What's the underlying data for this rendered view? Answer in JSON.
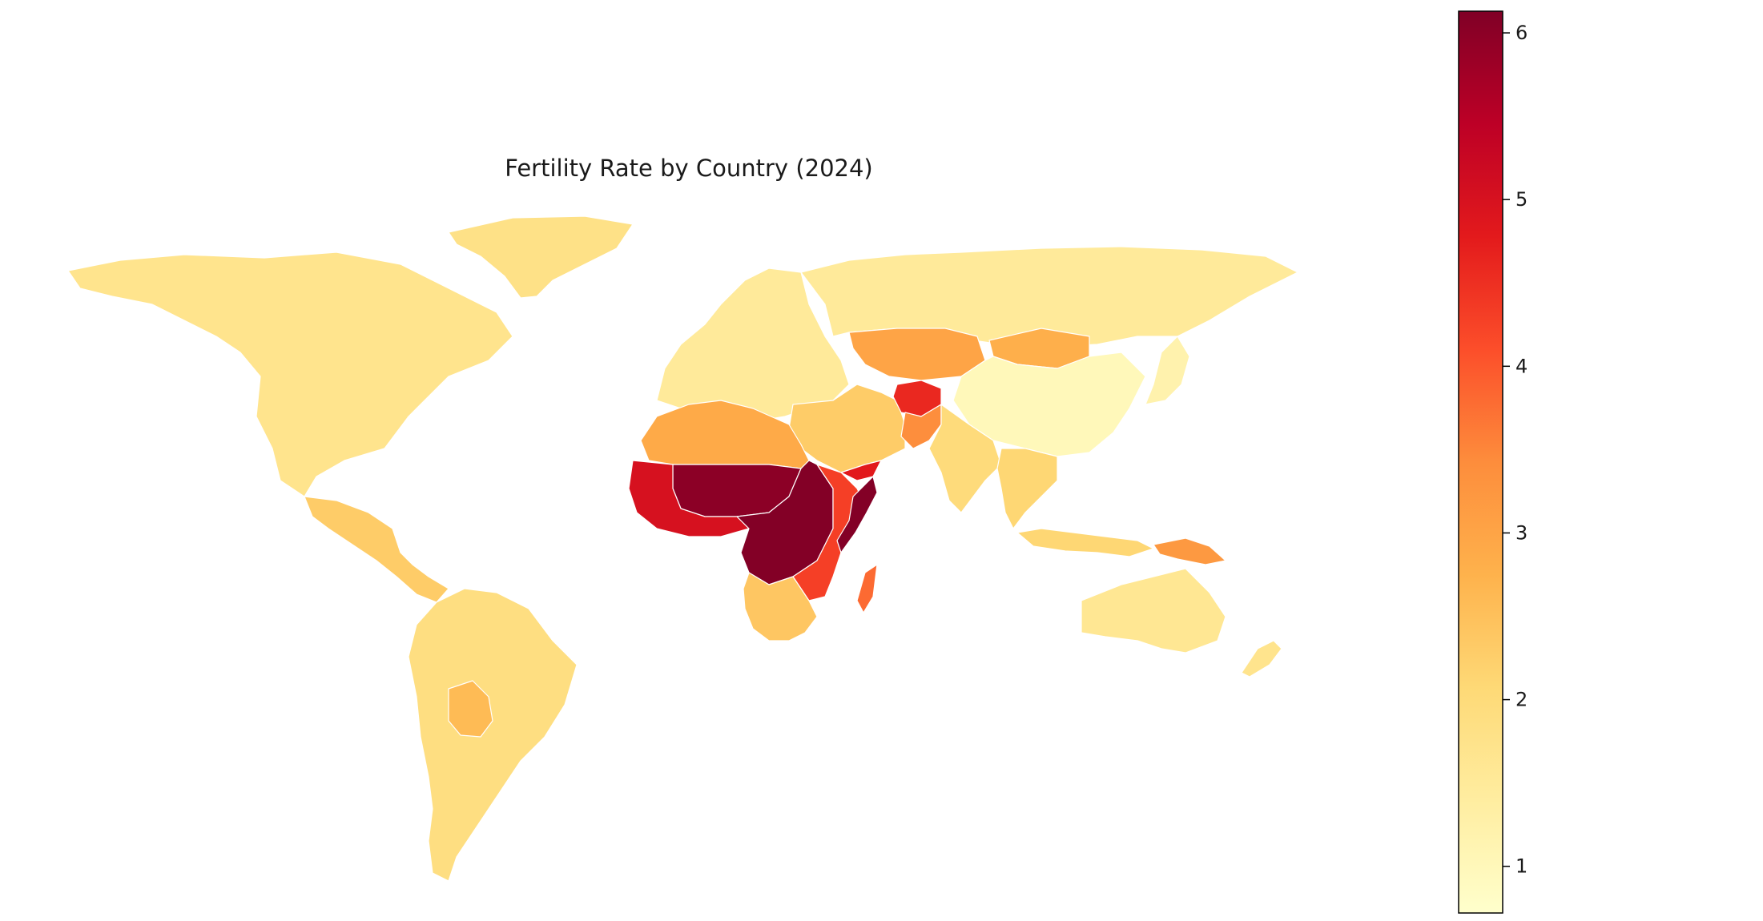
{
  "map": {
    "title": "Fertility Rate by Country (2024)",
    "no_data_color": "#c8c8c8",
    "colormap": "YlOrRd",
    "colormap_stops": [
      "#ffffcc",
      "#ffeda0",
      "#fed976",
      "#feb24c",
      "#fd8d3c",
      "#fc4e2a",
      "#e31a1c",
      "#bd0026",
      "#800026"
    ],
    "value_range": [
      0.72,
      6.13
    ],
    "regions": [
      {
        "name": "North America",
        "value": 1.7
      },
      {
        "name": "Greenland",
        "value": 1.8
      },
      {
        "name": "Central America",
        "value": 2.3
      },
      {
        "name": "South America",
        "value": 1.9
      },
      {
        "name": "Bolivia",
        "value": 2.6
      },
      {
        "name": "Europe",
        "value": 1.5
      },
      {
        "name": "Russia",
        "value": 1.5
      },
      {
        "name": "Kazakhstan",
        "value": 3.0
      },
      {
        "name": "Mongolia",
        "value": 2.8
      },
      {
        "name": "China",
        "value": 1.0
      },
      {
        "name": "Japan",
        "value": 1.2
      },
      {
        "name": "Middle East",
        "value": 2.3
      },
      {
        "name": "Afghanistan",
        "value": 4.6
      },
      {
        "name": "Pakistan",
        "value": 3.4
      },
      {
        "name": "India",
        "value": 2.0
      },
      {
        "name": "Southeast Asia",
        "value": 2.1
      },
      {
        "name": "Indonesia",
        "value": 2.1
      },
      {
        "name": "Papua New Guinea",
        "value": 3.2
      },
      {
        "name": "Australia",
        "value": 1.6
      },
      {
        "name": "New Zealand",
        "value": 1.7
      },
      {
        "name": "North Africa",
        "value": 2.9
      },
      {
        "name": "Sahel",
        "value": 6.0
      },
      {
        "name": "West Africa",
        "value": 5.0
      },
      {
        "name": "Central Africa",
        "value": 6.1
      },
      {
        "name": "East Africa",
        "value": 4.3
      },
      {
        "name": "Somalia",
        "value": 6.1
      },
      {
        "name": "Yemen",
        "value": 4.8
      },
      {
        "name": "Southern Africa",
        "value": 2.4
      },
      {
        "name": "Madagascar",
        "value": 3.8
      }
    ]
  },
  "colorbar": {
    "ticks": [
      1,
      2,
      3,
      4,
      5,
      6
    ],
    "tick_labels": [
      "1",
      "2",
      "3",
      "4",
      "5",
      "6"
    ]
  }
}
